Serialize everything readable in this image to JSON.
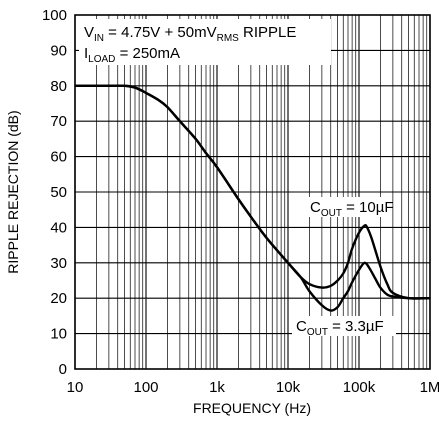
{
  "chart_data": {
    "type": "line",
    "title": "",
    "xlabel": "FREQUENCY (Hz)",
    "ylabel": "RIPPLE REJECTION (dB)",
    "xscale": "log",
    "xlim": [
      10,
      1000000
    ],
    "ylim": [
      0,
      100
    ],
    "grid": true,
    "x_tick_labels": [
      "10",
      "100",
      "1k",
      "10k",
      "100k",
      "1M"
    ],
    "y_tick_labels": [
      "0",
      "10",
      "20",
      "30",
      "40",
      "50",
      "60",
      "70",
      "80",
      "90",
      "100"
    ],
    "condition_lines": [
      {
        "main": "V",
        "sub": "IN",
        "rest": " = 4.75V + 50mV",
        "sub2": "RMS",
        "rest2": " RIPPLE"
      },
      {
        "main": "I",
        "sub": "LOAD",
        "rest": " = 250mA",
        "sub2": "",
        "rest2": ""
      }
    ],
    "series": [
      {
        "label_main": "C",
        "label_sub": "OUT",
        "label_rest": " = 10µF",
        "x": [
          10,
          30,
          50,
          70,
          100,
          150,
          200,
          300,
          500,
          700,
          1000,
          2000,
          3000,
          5000,
          10000,
          15000,
          20000,
          30000,
          40000,
          50000,
          60000,
          70000,
          80000,
          100000,
          120000,
          130000,
          150000,
          200000,
          250000,
          300000,
          500000,
          1000000
        ],
        "y": [
          80,
          80,
          80,
          79.5,
          78,
          76,
          74,
          70,
          65,
          61,
          57,
          48,
          43,
          37,
          30,
          26,
          24,
          23,
          23.5,
          25,
          27,
          30,
          34,
          38.5,
          40.5,
          40,
          37,
          29,
          24,
          21.5,
          20,
          20
        ]
      },
      {
        "label_main": "C",
        "label_sub": "OUT",
        "label_rest": " = 3.3µF",
        "x": [
          10,
          30,
          50,
          70,
          100,
          150,
          200,
          300,
          500,
          700,
          1000,
          2000,
          3000,
          5000,
          10000,
          15000,
          20000,
          30000,
          40000,
          50000,
          60000,
          70000,
          80000,
          100000,
          120000,
          140000,
          170000,
          200000,
          250000,
          300000,
          500000,
          1000000
        ],
        "y": [
          80,
          80,
          80,
          79.5,
          78,
          76,
          74,
          70,
          65,
          61,
          57,
          48,
          43,
          37,
          30,
          26,
          22,
          18,
          16.5,
          17.5,
          20,
          22,
          24.5,
          28,
          30,
          28.5,
          25.5,
          23,
          21,
          20.5,
          20,
          20
        ]
      }
    ]
  }
}
